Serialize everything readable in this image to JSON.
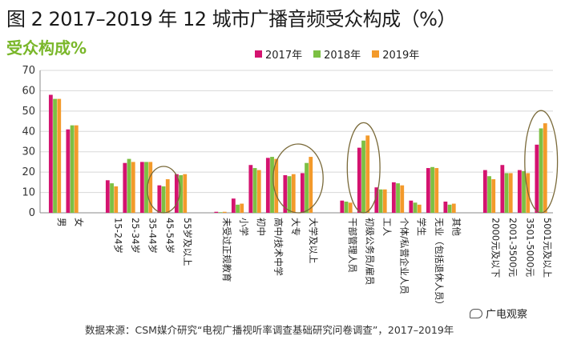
{
  "title": "图 2 2017–2019 年 12 城市广播音频受众构成（%）",
  "subtitle": "受众构成%",
  "source": "数据来源：CSM媒介研究“电视广播视听率调查基础研究问卷调查”，2017–2019年",
  "watermark": "广电观察",
  "colors": {
    "2017年": "#d4136f",
    "2018年": "#7cc043",
    "2019年": "#f39a2b",
    "highlight": "#7a6a3a"
  },
  "chart_data": {
    "type": "bar",
    "ylim": [
      0,
      70
    ],
    "yticks": [
      0,
      10,
      20,
      30,
      40,
      50,
      60,
      70
    ],
    "series_names": [
      "2017年",
      "2018年",
      "2019年"
    ],
    "categories": [
      "男",
      "女",
      "15-24岁",
      "25-34岁",
      "35-44岁",
      "45-54岁",
      "55岁及以上",
      "未受过正规教育",
      "小学",
      "初中",
      "高中/技术中学",
      "大专",
      "大学及以上",
      "干部管理人员",
      "初级公务员/雇员",
      "工人",
      "个体/私营企业人员",
      "学生",
      "无业（包括退休人员）",
      "其他",
      "2000元及以下",
      "2001-3500元",
      "3501-5000元",
      "5001元及以上"
    ],
    "groups": [
      [
        0,
        1
      ],
      [
        2,
        3,
        4,
        5,
        6
      ],
      [
        7,
        8,
        9,
        10,
        11,
        12
      ],
      [
        13,
        14,
        15,
        16,
        17,
        18,
        19
      ],
      [
        20,
        21,
        22,
        23
      ]
    ],
    "values": [
      [
        58,
        56,
        56
      ],
      [
        41,
        43,
        43
      ],
      [
        16,
        14.5,
        13
      ],
      [
        24.5,
        26.5,
        25
      ],
      [
        25,
        25,
        25
      ],
      [
        13.5,
        13,
        16.5
      ],
      [
        19,
        18.5,
        19
      ],
      [
        0.5,
        0.3,
        0.5
      ],
      [
        7,
        4,
        4.5
      ],
      [
        23.5,
        22,
        21
      ],
      [
        27,
        27.5,
        26.5
      ],
      [
        18.5,
        18,
        19
      ],
      [
        19.5,
        24.5,
        27.5
      ],
      [
        6,
        5.5,
        5
      ],
      [
        32,
        35.5,
        38
      ],
      [
        12.5,
        11.5,
        11.5
      ],
      [
        15,
        14.5,
        13.5
      ],
      [
        6,
        5,
        4
      ],
      [
        22,
        22.5,
        22
      ],
      [
        5.5,
        4,
        4.5
      ],
      [
        21,
        18,
        16.5
      ],
      [
        23.5,
        19.5,
        19.5
      ],
      [
        21,
        20.5,
        19.5
      ],
      [
        33.5,
        41.5,
        44
      ]
    ],
    "highlighted_categories": [
      "45-54岁",
      "大专",
      "大学及以上",
      "初级公务员/雇员",
      "5001元及以上"
    ]
  }
}
